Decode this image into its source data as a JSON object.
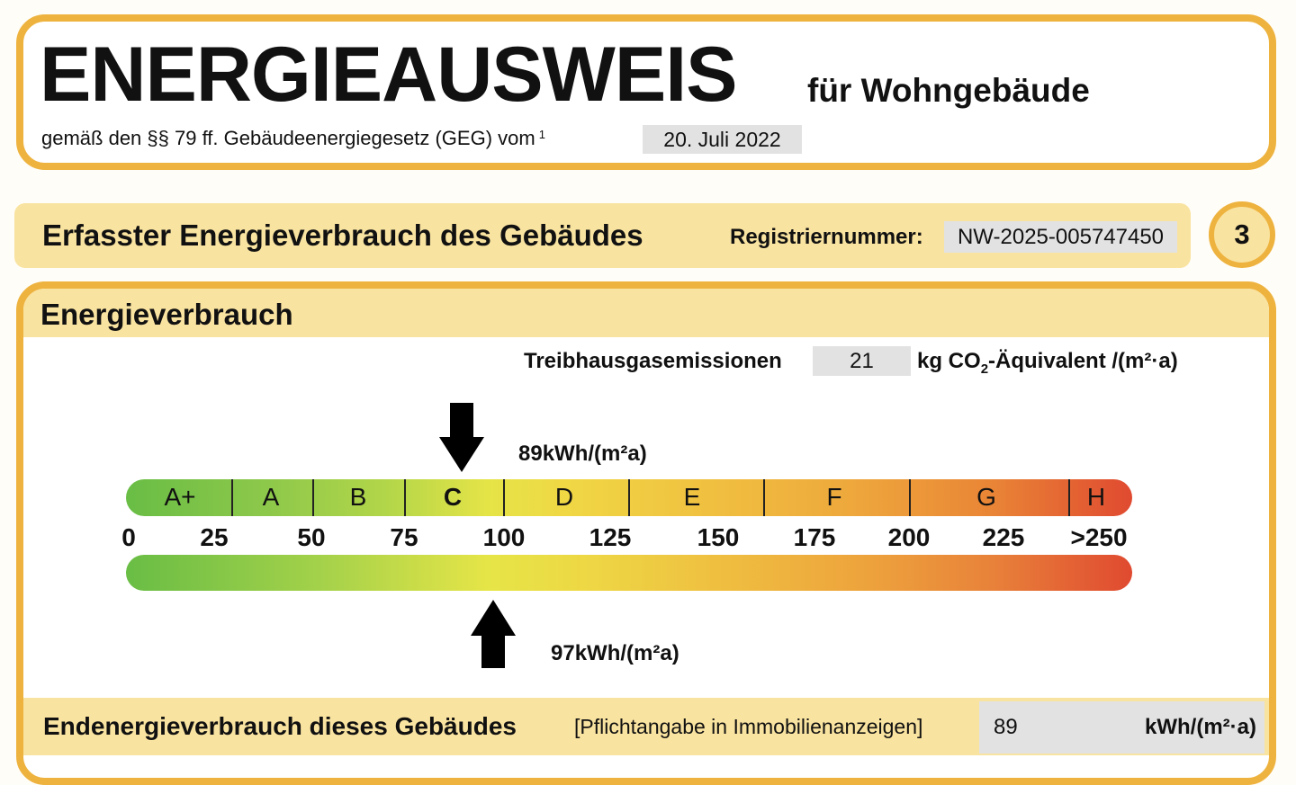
{
  "header": {
    "title": "ENERGIEAUSWEIS",
    "subtitle": "für Wohngebäude",
    "legal": "gemäß den §§ 79 ff. Gebäudeenergiegesetz (GEG) vom",
    "footnote": "1",
    "date": "20. Juli 2022"
  },
  "section": {
    "title": "Erfasster Energieverbrauch des Gebäudes",
    "reg_label": "Registriernummer:",
    "reg_number": "NW-2025-005747450",
    "page_number": "3"
  },
  "energy": {
    "title": "Energieverbrauch",
    "ghg_label": "Treibhausgasemissionen",
    "ghg_value": "21",
    "ghg_unit_pre": "kg CO",
    "ghg_unit_sub": "2",
    "ghg_unit_post": "-Äquivalent /(m²·a)",
    "scale": {
      "classes": [
        "A+",
        "A",
        "B",
        "C",
        "D",
        "E",
        "F",
        "G",
        "H"
      ],
      "highlighted_class": "C",
      "ticks": [
        "0",
        "25",
        "50",
        "75",
        "100",
        "125",
        "150",
        "175",
        "200",
        "225",
        ">250"
      ],
      "colors": {
        "green": "#69bd45",
        "yellow": "#e5e447",
        "orange": "#eea83c",
        "red": "#e04a30"
      }
    },
    "top_marker": {
      "value": 89,
      "label": "89kWh/(m²a)"
    },
    "bottom_marker": {
      "value": 97,
      "label": "97kWh/(m²a)"
    },
    "final": {
      "title": "Endenergieverbrauch dieses Gebäudes",
      "note": "[Pflichtangabe in Immobilienanzeigen]",
      "value": "89",
      "unit": "kWh/(m²·a)"
    }
  },
  "colors": {
    "border": "#eeb33f",
    "band": "#f9e3a0",
    "field": "#e2e2e2"
  }
}
